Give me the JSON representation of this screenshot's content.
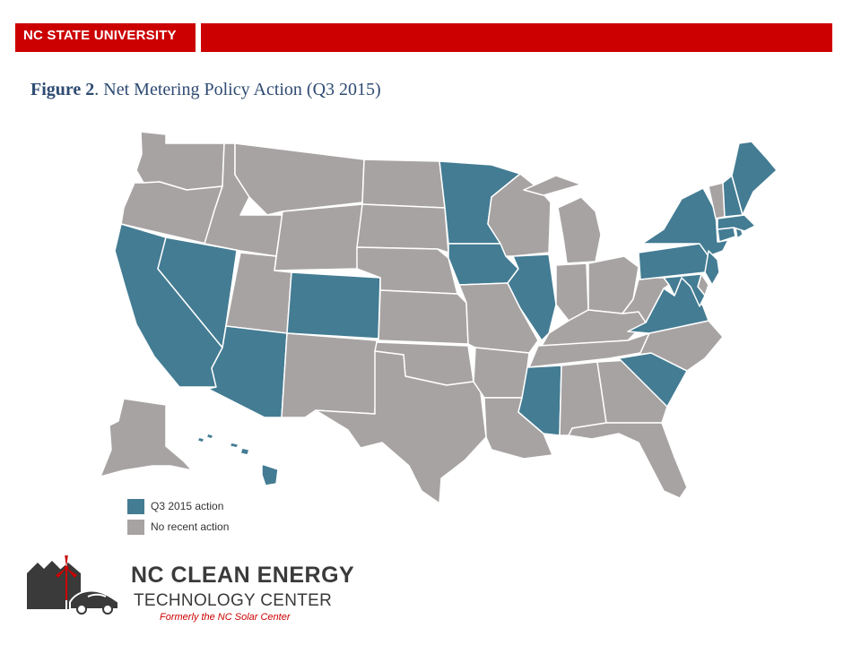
{
  "header": {
    "brand": "NC STATE UNIVERSITY"
  },
  "figure": {
    "label": "Figure 2",
    "title": ". Net Metering Policy Action (Q3 2015)"
  },
  "colors": {
    "brand_red": "#cc0000",
    "action": "#437c93",
    "no_action": "#a8a3a3",
    "border": "#ffffff"
  },
  "legend": {
    "items": [
      {
        "label": "Q3 2015 action",
        "color": "#437c93"
      },
      {
        "label": "No recent action",
        "color": "#a8a3a3"
      }
    ]
  },
  "map_data": {
    "states_with_action": [
      "CA",
      "NV",
      "AZ",
      "CO",
      "MN",
      "IA",
      "IL",
      "MS",
      "SC",
      "VA",
      "NY",
      "PA",
      "NJ",
      "ME",
      "NH",
      "MA",
      "CT",
      "RI",
      "MD",
      "HI"
    ],
    "states_without_action": [
      "WA",
      "OR",
      "ID",
      "MT",
      "WY",
      "UT",
      "NM",
      "ND",
      "SD",
      "NE",
      "KS",
      "OK",
      "TX",
      "MO",
      "AR",
      "LA",
      "WI",
      "MI",
      "IN",
      "OH",
      "KY",
      "TN",
      "AL",
      "GA",
      "FL",
      "NC",
      "WV",
      "DE",
      "VT",
      "AK"
    ]
  },
  "logo": {
    "line1": "NC CLEAN ENERGY",
    "line2": "TECHNOLOGY CENTER",
    "line3": "Formerly the NC Solar Center"
  }
}
